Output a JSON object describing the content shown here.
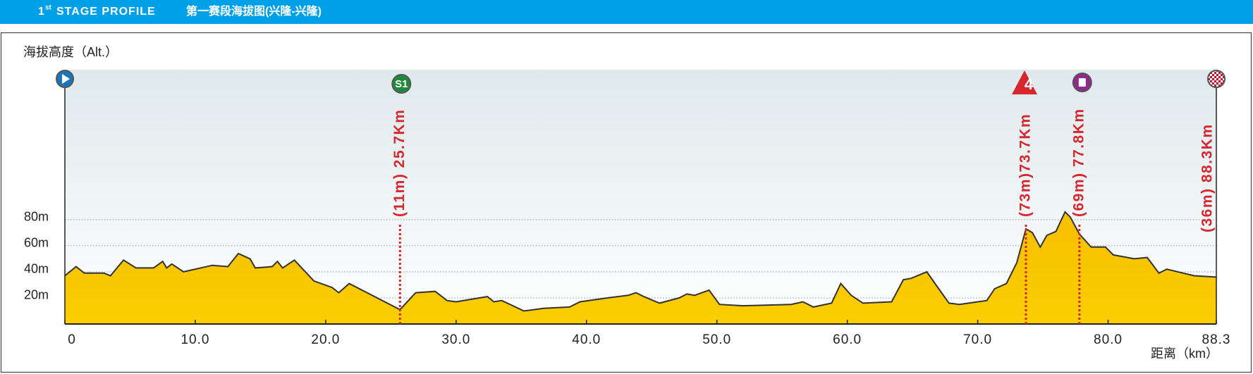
{
  "header": {
    "number": "1",
    "suffix": "st",
    "title": "STAGE PROFILE",
    "subtitle": "第一赛段海拔图(兴隆-兴隆)"
  },
  "chart_data": {
    "type": "area",
    "y_axis_label": "海拔高度（Alt.）",
    "x_axis_label": "距离（km）",
    "x": [
      0,
      0.86,
      1.5,
      3.0,
      3.5,
      4.5,
      5.45,
      6.8,
      7.5,
      7.8,
      8.2,
      9.1,
      11.3,
      12.5,
      13.3,
      14.2,
      14.6,
      15.9,
      16.3,
      16.7,
      17.6,
      19.1,
      20.5,
      21.0,
      21.8,
      25.7,
      26.9,
      28.4,
      29.3,
      30.0,
      32.4,
      32.9,
      33.5,
      35.2,
      36.7,
      38.7,
      39.5,
      41.6,
      43.2,
      43.8,
      44.4,
      45.6,
      47.1,
      47.7,
      48.3,
      49.4,
      50.2,
      52.0,
      55.7,
      56.6,
      57.4,
      58.8,
      59.5,
      60.3,
      61.2,
      63.4,
      64.3,
      64.9,
      66.1,
      66.8,
      67.8,
      68.6,
      70.7,
      71.3,
      72.2,
      73.0,
      73.7,
      74.2,
      74.8,
      75.3,
      76.0,
      76.7,
      77.1,
      77.8,
      78.7,
      79.8,
      80.4,
      82.0,
      83.0,
      83.9,
      84.5,
      86.6,
      88.3
    ],
    "values": [
      37,
      44,
      39,
      39,
      37,
      49,
      43,
      43,
      48,
      43,
      46,
      40,
      45,
      44,
      54,
      50,
      43,
      44,
      48,
      43,
      49,
      33,
      28,
      24,
      31,
      11,
      24,
      25,
      18,
      17,
      21,
      17,
      18,
      10,
      12,
      13,
      17,
      20,
      22,
      24,
      21,
      16,
      20,
      23,
      22,
      26,
      15,
      14,
      15,
      17,
      13,
      16,
      31,
      22,
      16,
      17,
      34,
      35,
      40,
      30,
      16,
      15,
      18,
      27,
      31,
      47,
      73,
      70,
      59,
      68,
      71,
      86,
      82,
      69,
      59,
      59,
      53,
      50,
      51,
      39,
      42,
      37,
      36
    ],
    "color": "#f8c800",
    "line_color": "#333333",
    "xlim": [
      0,
      88.3
    ],
    "ylim": [
      0,
      195
    ],
    "xticks": [
      0,
      {
        "value": 10,
        "label": "10.0"
      },
      {
        "value": 20,
        "label": "20.0"
      },
      {
        "value": 30,
        "label": "30.0"
      },
      {
        "value": 40,
        "label": "40.0"
      },
      {
        "value": 50,
        "label": "50.0"
      },
      {
        "value": 60,
        "label": "60.0"
      },
      {
        "value": 70,
        "label": "70.0"
      },
      {
        "value": 80,
        "label": "80.0"
      },
      88.3
    ],
    "yticks": [
      {
        "value": 20,
        "label": "20m"
      },
      {
        "value": 40,
        "label": "40m"
      },
      {
        "value": 60,
        "label": "60m"
      },
      {
        "value": 80,
        "label": "80m"
      }
    ],
    "grid": true,
    "annotations": [
      {
        "x": 25.7,
        "icon": "S1",
        "label": "(11m) 25.7Km"
      },
      {
        "x": 73.7,
        "icon": "4",
        "label": "(73m)73.7Km"
      },
      {
        "x": 77.8,
        "label": "(69m) 77.8Km"
      },
      {
        "x": 88.3,
        "label": "(36m) 88.3Km"
      }
    ]
  }
}
